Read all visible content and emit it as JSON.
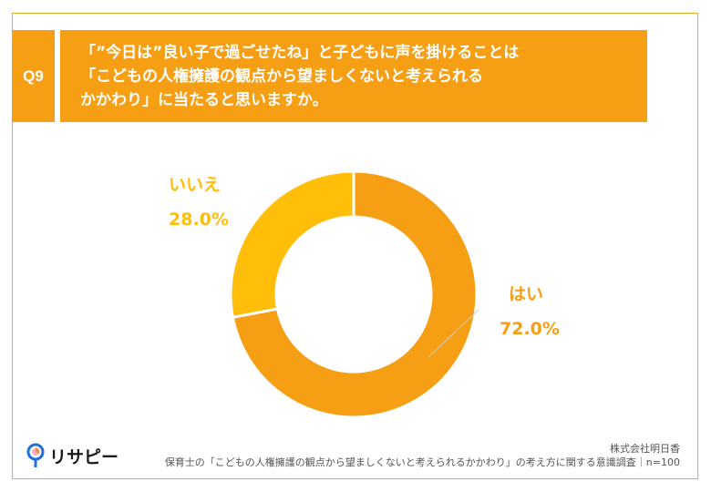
{
  "question": {
    "number": "Q9",
    "text": "「”今日は”良い子で過ごせたね」と子どもに声を掛けることは\n「こどもの人権擁護の観点から望ましくないと考えられる\nかかわり」に当たると思いますか。"
  },
  "chart_data": {
    "type": "pie",
    "donut": true,
    "title": "「”今日は”良い子で過ごせたね」と子どもに声を掛けることは「こどもの人権擁護の観点から望ましくないと考えられるかかわり」に当たると思いますか。",
    "slices": [
      {
        "label": "はい",
        "value": 72.0,
        "display": "72.0%",
        "color": "#F79F14"
      },
      {
        "label": "いいえ",
        "value": 28.0,
        "display": "28.0%",
        "color": "#FFBE0A"
      }
    ]
  },
  "footer": {
    "logo": "リサピー",
    "company": "株式会社明日香",
    "source": "保育士の「こどもの人権擁護の観点から望ましくないと考えられるかかわり」の考え方に関する意識調査｜n=100"
  }
}
